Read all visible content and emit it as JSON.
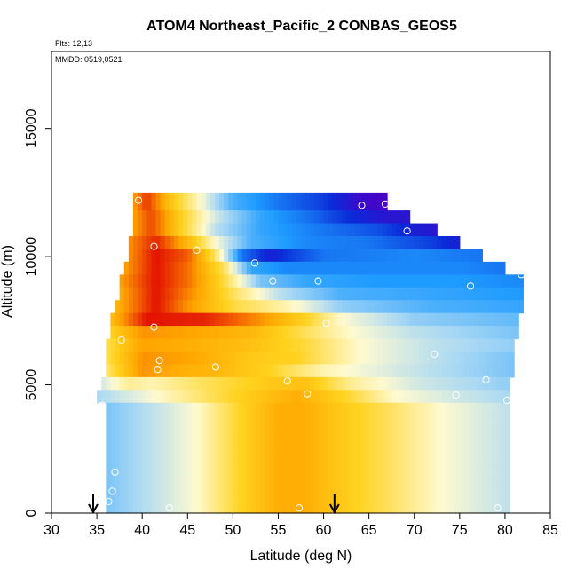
{
  "chart_data": {
    "type": "heatmap",
    "title": "ATOM4 Northeast_Pacific_2 CONBAS_GEOS5",
    "flights_text": "Flts: 12,13",
    "dates_text": "MMDD: 0519,0521",
    "xlabel": "Latitude (deg N)",
    "ylabel": "Altitude (m)",
    "xlim": [
      30,
      85
    ],
    "ylim": [
      0,
      18000
    ],
    "x_ticks": [
      30,
      35,
      40,
      45,
      50,
      55,
      60,
      65,
      70,
      75,
      80,
      85
    ],
    "y_ticks": [
      0,
      5000,
      10000,
      15000
    ],
    "grid": false,
    "arrows_at_latitude": [
      34.6,
      61.2
    ],
    "colors": {
      "very_low": "#4a00c8",
      "low": "#0a2ad8",
      "mid_low": "#1e9bff",
      "light_blue": "#a8d8f4",
      "neutral": "#fffad0",
      "mid_high": "#ffd21e",
      "high": "#ffa500",
      "very_high": "#e00000"
    },
    "value_scale_note": "relative",
    "layers": [
      {
        "alt": [
          11800,
          12500
        ],
        "lat": [
          39.0,
          67.0
        ],
        "profile": [
          [
            39.0,
            0.55
          ],
          [
            40.5,
            0.85
          ],
          [
            43.0,
            0.4
          ],
          [
            46.0,
            0.05
          ],
          [
            50.0,
            -0.4
          ],
          [
            55.0,
            -0.6
          ],
          [
            60.0,
            -0.75
          ],
          [
            64.0,
            -0.95
          ],
          [
            67.0,
            -1.0
          ]
        ]
      },
      {
        "alt": [
          11300,
          11800
        ],
        "lat": [
          39.0,
          69.5
        ],
        "profile": [
          [
            39.0,
            0.55
          ],
          [
            41.0,
            0.8
          ],
          [
            44.0,
            0.35
          ],
          [
            48.0,
            -0.1
          ],
          [
            53.0,
            -0.45
          ],
          [
            58.0,
            -0.6
          ],
          [
            63.0,
            -0.8
          ],
          [
            67.0,
            -0.9
          ],
          [
            69.5,
            -0.9
          ]
        ]
      },
      {
        "alt": [
          10800,
          11300
        ],
        "lat": [
          39.0,
          72.5
        ],
        "profile": [
          [
            39.0,
            0.55
          ],
          [
            41.0,
            0.8
          ],
          [
            44.0,
            0.35
          ],
          [
            48.0,
            -0.15
          ],
          [
            53.0,
            -0.45
          ],
          [
            60.0,
            -0.6
          ],
          [
            66.0,
            -0.7
          ],
          [
            70.0,
            -0.85
          ],
          [
            72.5,
            -0.9
          ]
        ]
      },
      {
        "alt": [
          10300,
          10800
        ],
        "lat": [
          38.5,
          75.0
        ],
        "profile": [
          [
            38.5,
            0.6
          ],
          [
            41.5,
            0.9
          ],
          [
            45.0,
            0.45
          ],
          [
            48.0,
            0.0
          ],
          [
            52.0,
            -0.4
          ],
          [
            58.0,
            -0.55
          ],
          [
            65.0,
            -0.6
          ],
          [
            72.0,
            -0.75
          ],
          [
            75.0,
            -0.85
          ]
        ]
      },
      {
        "alt": [
          9800,
          10300
        ],
        "lat": [
          38.5,
          77.5
        ],
        "profile": [
          [
            38.5,
            0.6
          ],
          [
            41.5,
            0.95
          ],
          [
            45.0,
            0.75
          ],
          [
            48.0,
            0.2
          ],
          [
            51.0,
            -0.6
          ],
          [
            54.0,
            -0.85
          ],
          [
            60.0,
            -0.6
          ],
          [
            70.0,
            -0.55
          ],
          [
            77.5,
            -0.6
          ]
        ]
      },
      {
        "alt": [
          9300,
          9800
        ],
        "lat": [
          38.0,
          80.0
        ],
        "profile": [
          [
            38.0,
            0.55
          ],
          [
            41.5,
            0.95
          ],
          [
            45.0,
            0.7
          ],
          [
            49.0,
            0.2
          ],
          [
            52.0,
            -0.45
          ],
          [
            56.0,
            -0.55
          ],
          [
            65.0,
            -0.55
          ],
          [
            75.0,
            -0.55
          ],
          [
            80.0,
            -0.6
          ]
        ]
      },
      {
        "alt": [
          8800,
          9300
        ],
        "lat": [
          37.5,
          82.0
        ],
        "profile": [
          [
            37.5,
            0.55
          ],
          [
            41.5,
            0.95
          ],
          [
            45.0,
            0.7
          ],
          [
            49.0,
            0.25
          ],
          [
            53.0,
            -0.3
          ],
          [
            58.0,
            -0.45
          ],
          [
            66.0,
            -0.5
          ],
          [
            75.0,
            -0.5
          ],
          [
            82.0,
            -0.55
          ]
        ]
      },
      {
        "alt": [
          8300,
          8800
        ],
        "lat": [
          37.5,
          82.0
        ],
        "profile": [
          [
            37.5,
            0.5
          ],
          [
            41.5,
            0.95
          ],
          [
            45.0,
            0.65
          ],
          [
            50.0,
            0.2
          ],
          [
            55.0,
            -0.15
          ],
          [
            62.0,
            -0.4
          ],
          [
            72.0,
            -0.45
          ],
          [
            82.0,
            -0.5
          ]
        ]
      },
      {
        "alt": [
          7800,
          8300
        ],
        "lat": [
          37.0,
          82.0
        ],
        "profile": [
          [
            37.0,
            0.45
          ],
          [
            41.5,
            0.95
          ],
          [
            45.0,
            0.6
          ],
          [
            50.0,
            0.25
          ],
          [
            56.0,
            0.05
          ],
          [
            62.0,
            -0.25
          ],
          [
            72.0,
            -0.4
          ],
          [
            82.0,
            -0.45
          ]
        ]
      },
      {
        "alt": [
          7300,
          7800
        ],
        "lat": [
          36.5,
          81.5
        ],
        "profile": [
          [
            36.5,
            0.4
          ],
          [
            40.5,
            0.95
          ],
          [
            47.0,
            0.9
          ],
          [
            53.0,
            0.6
          ],
          [
            58.0,
            0.3
          ],
          [
            62.0,
            0.0
          ],
          [
            70.0,
            -0.25
          ],
          [
            81.5,
            -0.35
          ]
        ]
      },
      {
        "alt": [
          6800,
          7300
        ],
        "lat": [
          36.5,
          81.5
        ],
        "profile": [
          [
            36.5,
            0.3
          ],
          [
            40.0,
            0.6
          ],
          [
            45.0,
            0.55
          ],
          [
            52.0,
            0.45
          ],
          [
            58.0,
            0.2
          ],
          [
            63.0,
            0.0
          ],
          [
            70.0,
            -0.15
          ],
          [
            81.5,
            -0.3
          ]
        ]
      },
      {
        "alt": [
          6300,
          6800
        ],
        "lat": [
          36.0,
          81.0
        ],
        "profile": [
          [
            36.0,
            0.2
          ],
          [
            40.0,
            0.55
          ],
          [
            45.0,
            0.5
          ],
          [
            52.0,
            0.4
          ],
          [
            58.0,
            0.25
          ],
          [
            64.0,
            0.0
          ],
          [
            72.0,
            -0.15
          ],
          [
            81.0,
            -0.25
          ]
        ]
      },
      {
        "alt": [
          5800,
          6300
        ],
        "lat": [
          36.0,
          81.0
        ],
        "profile": [
          [
            36.0,
            0.2
          ],
          [
            40.0,
            0.6
          ],
          [
            45.0,
            0.55
          ],
          [
            52.0,
            0.35
          ],
          [
            57.0,
            0.3
          ],
          [
            64.0,
            0.0
          ],
          [
            72.0,
            -0.15
          ],
          [
            81.0,
            -0.3
          ]
        ]
      },
      {
        "alt": [
          5300,
          5800
        ],
        "lat": [
          36.0,
          81.0
        ],
        "profile": [
          [
            36.0,
            0.15
          ],
          [
            40.0,
            0.6
          ],
          [
            44.0,
            0.5
          ],
          [
            48.0,
            0.45
          ],
          [
            54.0,
            0.3
          ],
          [
            60.0,
            0.05
          ],
          [
            68.0,
            -0.1
          ],
          [
            81.0,
            -0.3
          ]
        ]
      },
      {
        "alt": [
          4800,
          5300
        ],
        "lat": [
          35.5,
          80.5
        ],
        "profile": [
          [
            35.5,
            -0.1
          ],
          [
            38.5,
            0.1
          ],
          [
            41.0,
            0.05
          ],
          [
            47.0,
            0.2
          ],
          [
            54.0,
            0.35
          ],
          [
            58.0,
            0.4
          ],
          [
            63.0,
            0.1
          ],
          [
            70.0,
            -0.1
          ],
          [
            80.5,
            -0.25
          ]
        ]
      },
      {
        "alt": [
          4300,
          4800
        ],
        "lat": [
          35.0,
          80.5
        ],
        "profile": [
          [
            35.0,
            -0.2
          ],
          [
            40.0,
            -0.05
          ],
          [
            46.0,
            0.15
          ],
          [
            52.0,
            0.35
          ],
          [
            57.0,
            0.5
          ],
          [
            62.0,
            0.3
          ],
          [
            68.0,
            0.0
          ],
          [
            74.0,
            -0.1
          ],
          [
            80.5,
            -0.2
          ]
        ]
      },
      {
        "alt": [
          0,
          4300
        ],
        "lat": [
          36.0,
          80.5
        ],
        "profile": [
          [
            36.0,
            -0.3
          ],
          [
            41.0,
            -0.15
          ],
          [
            46.0,
            0.0
          ],
          [
            51.0,
            0.3
          ],
          [
            55.0,
            0.5
          ],
          [
            58.0,
            0.5
          ],
          [
            62.0,
            0.35
          ],
          [
            67.0,
            0.2
          ],
          [
            73.0,
            0.0
          ],
          [
            80.5,
            -0.15
          ]
        ]
      }
    ],
    "points": [
      {
        "lat": 39.6,
        "alt": 12200
      },
      {
        "lat": 64.2,
        "alt": 12000
      },
      {
        "lat": 66.8,
        "alt": 12050
      },
      {
        "lat": 69.2,
        "alt": 11000
      },
      {
        "lat": 41.3,
        "alt": 10400
      },
      {
        "lat": 46.0,
        "alt": 10250
      },
      {
        "lat": 52.4,
        "alt": 9750
      },
      {
        "lat": 54.4,
        "alt": 9050
      },
      {
        "lat": 59.4,
        "alt": 9050
      },
      {
        "lat": 76.2,
        "alt": 8850
      },
      {
        "lat": 81.8,
        "alt": 9300
      },
      {
        "lat": 41.3,
        "alt": 7250
      },
      {
        "lat": 60.3,
        "alt": 7400
      },
      {
        "lat": 37.7,
        "alt": 6750
      },
      {
        "lat": 72.2,
        "alt": 6200
      },
      {
        "lat": 41.9,
        "alt": 5950
      },
      {
        "lat": 41.7,
        "alt": 5600
      },
      {
        "lat": 48.1,
        "alt": 5700
      },
      {
        "lat": 56.0,
        "alt": 5150
      },
      {
        "lat": 58.2,
        "alt": 4650
      },
      {
        "lat": 74.6,
        "alt": 4600
      },
      {
        "lat": 77.9,
        "alt": 5200
      },
      {
        "lat": 80.2,
        "alt": 4400
      },
      {
        "lat": 35.6,
        "alt": 4200
      },
      {
        "lat": 37.0,
        "alt": 1600
      },
      {
        "lat": 36.7,
        "alt": 850
      },
      {
        "lat": 36.3,
        "alt": 450
      },
      {
        "lat": 43.0,
        "alt": 200
      },
      {
        "lat": 57.3,
        "alt": 200
      },
      {
        "lat": 79.2,
        "alt": 200
      }
    ]
  }
}
